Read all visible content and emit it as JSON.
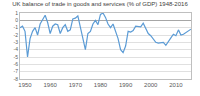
{
  "chart_data": {
    "type": "line",
    "title": "UK balance of trade in goods and services (% of GDP) 1948-2016",
    "x": [
      1948,
      1949,
      1950,
      1951,
      1952,
      1953,
      1954,
      1955,
      1956,
      1957,
      1958,
      1959,
      1960,
      1961,
      1962,
      1963,
      1964,
      1965,
      1966,
      1967,
      1968,
      1969,
      1970,
      1971,
      1972,
      1973,
      1974,
      1975,
      1976,
      1977,
      1978,
      1979,
      1980,
      1981,
      1982,
      1983,
      1984,
      1985,
      1986,
      1987,
      1988,
      1989,
      1990,
      1991,
      1992,
      1993,
      1994,
      1995,
      1996,
      1997,
      1998,
      1999,
      2000,
      2001,
      2002,
      2003,
      2004,
      2005,
      2006,
      2007,
      2008,
      2009,
      2010,
      2011,
      2012,
      2013,
      2014,
      2015,
      2016
    ],
    "values": [
      -1.0,
      -0.8,
      -1.5,
      -5.0,
      -2.5,
      -1.5,
      -1.0,
      -2.0,
      -0.5,
      0.2,
      0.7,
      -0.3,
      -1.8,
      -0.8,
      -0.5,
      -0.6,
      -1.8,
      -1.0,
      -0.6,
      -1.5,
      -1.3,
      0.2,
      0.3,
      0.6,
      -0.8,
      -2.5,
      -4.0,
      -1.8,
      -1.5,
      -0.5,
      0.0,
      -0.6,
      0.8,
      1.0,
      0.4,
      -0.5,
      -1.0,
      -0.5,
      -1.6,
      -2.5,
      -4.0,
      -4.4,
      -3.5,
      -1.5,
      -1.6,
      -1.4,
      -0.8,
      -0.9,
      -0.9,
      -0.4,
      -1.1,
      -1.8,
      -2.1,
      -2.6,
      -3.0,
      -3.1,
      -3.0,
      -3.0,
      -3.4,
      -2.8,
      -2.4,
      -1.9,
      -2.1,
      -1.3,
      -2.0,
      -1.9,
      -1.7,
      -1.5,
      -1.2
    ],
    "color": "#5b9bd5",
    "xlim": [
      1948,
      2016
    ],
    "xticks": [
      1950,
      1960,
      1970,
      1980,
      1990,
      2000,
      2010
    ],
    "ylim": [
      -8,
      1
    ],
    "yticks": [
      -8,
      -7,
      -6,
      -5,
      -4,
      -3,
      -2,
      -1,
      0,
      1
    ],
    "grid": true
  }
}
